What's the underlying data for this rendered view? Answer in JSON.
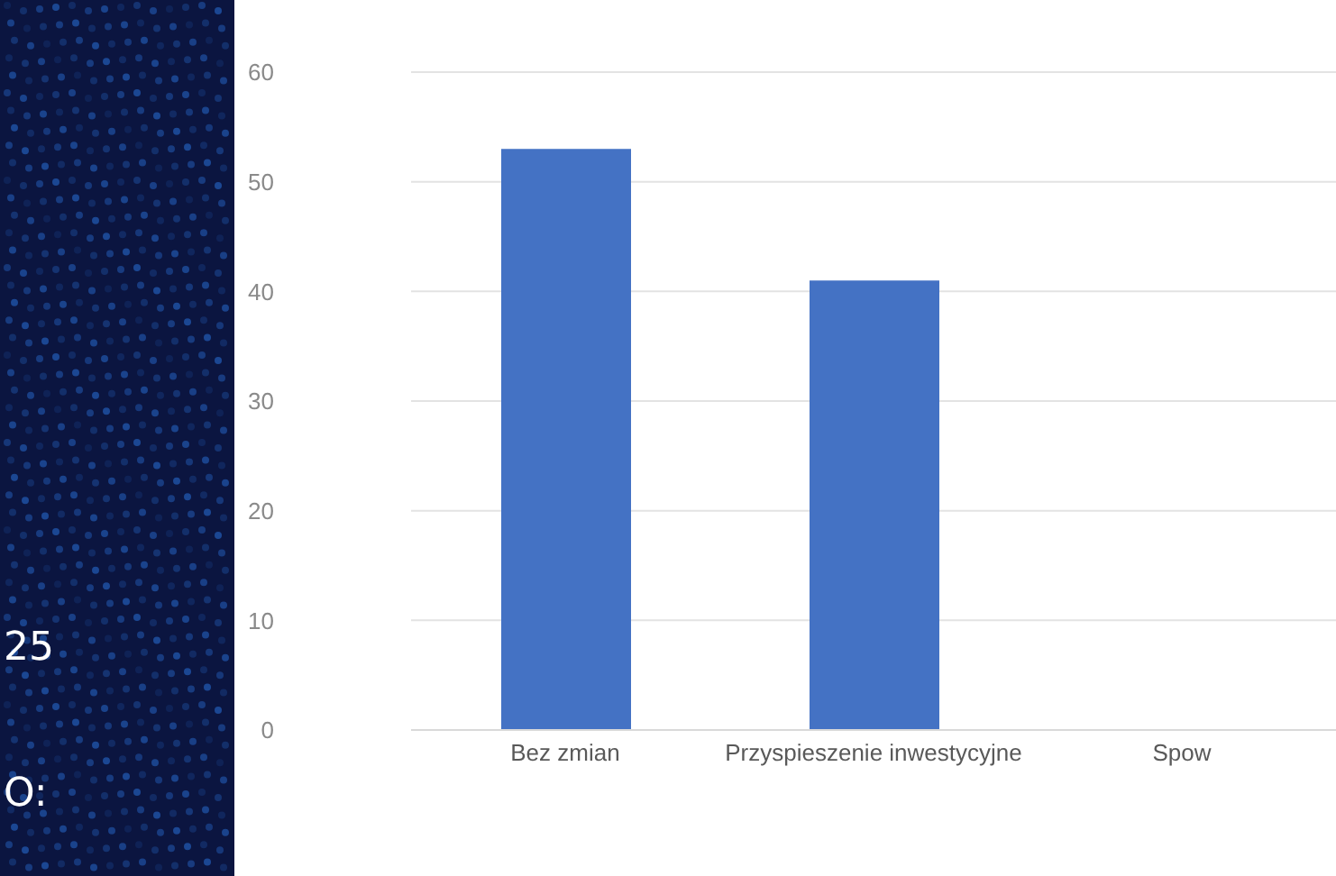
{
  "chart_data": {
    "type": "bar",
    "categories": [
      "Bez zmian",
      "Przyspieszenie inwestycyjne",
      "Spow"
    ],
    "values": [
      53,
      41,
      null
    ],
    "color": "#4472c4",
    "ylim": [
      0,
      60
    ],
    "yticks": [
      0,
      10,
      20,
      30,
      40,
      50,
      60
    ],
    "grid": "y",
    "annotations": [
      "25",
      "O:"
    ]
  }
}
